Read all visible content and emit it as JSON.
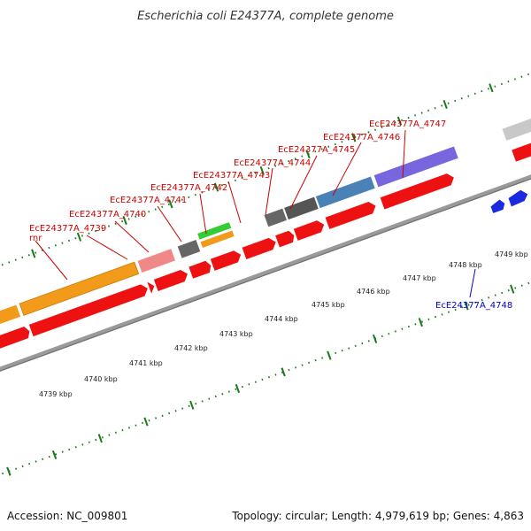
{
  "title": "Escherichia coli E24377A, complete genome",
  "footer": {
    "accession": "Accession: NC_009801",
    "summary": "Topology: circular; Length: 4,979,619 bp; Genes: 4,863"
  },
  "colors": {
    "backbone": "#9a9a9a",
    "tick": "#1a7a1a",
    "cds": "#ee1111",
    "orange": "#f29a1a",
    "pink": "#f08888",
    "darkgray": "#666666",
    "green": "#33cc33",
    "steelblue": "#4a82b8",
    "purple": "#7766dd",
    "lightgray": "#c8c8c8",
    "blue": "#1a2ae0",
    "label_red": "#cc0000",
    "label_blue": "#0000cc"
  },
  "scale": {
    "ticks": [
      {
        "label": "4739 kbp",
        "kbp": 4739
      },
      {
        "label": "4740 kbp",
        "kbp": 4740
      },
      {
        "label": "4741 kbp",
        "kbp": 4741
      },
      {
        "label": "4742 kbp",
        "kbp": 4742
      },
      {
        "label": "4743 kbp",
        "kbp": 4743
      },
      {
        "label": "4744 kbp",
        "kbp": 4744
      },
      {
        "label": "4745 kbp",
        "kbp": 4745
      },
      {
        "label": "4746 kbp",
        "kbp": 4746
      },
      {
        "label": "4747 kbp",
        "kbp": 4747
      },
      {
        "label": "4748 kbp",
        "kbp": 4748
      },
      {
        "label": "4749 kbp",
        "kbp": 4749
      }
    ]
  },
  "gene_labels": [
    {
      "text": "rnr"
    },
    {
      "text": "EcE24377A_4739"
    },
    {
      "text": "EcE24377A_4740"
    },
    {
      "text": "EcE24377A_4741"
    },
    {
      "text": "EcE24377A_4742"
    },
    {
      "text": "EcE24377A_4743"
    },
    {
      "text": "EcE24377A_4744"
    },
    {
      "text": "EcE24377A_4745"
    },
    {
      "text": "EcE24377A_4746"
    },
    {
      "text": "EcE24377A_4747"
    },
    {
      "text": "EcE24377A_4748"
    }
  ]
}
